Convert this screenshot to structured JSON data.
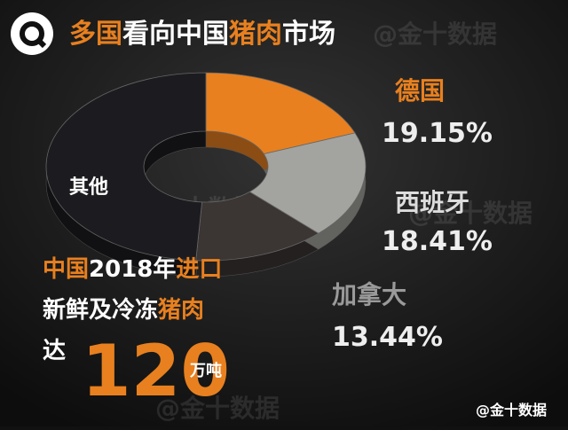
{
  "chart_data": {
    "type": "pie",
    "title": [
      "多国",
      "看向中国",
      "猪肉",
      "市场"
    ],
    "categories": [
      "德国",
      "西班牙",
      "加拿大",
      "其他"
    ],
    "values": [
      19.15,
      18.41,
      13.44,
      49
    ],
    "value_labels": [
      "19.15%",
      "18.41%",
      "13.44%",
      null
    ],
    "colors": [
      "#e8801f",
      "#a3a49f",
      "#3b3533",
      "#1c1c20"
    ],
    "donut": true
  },
  "annotation": {
    "line1": [
      "中国",
      "2018年",
      "进口"
    ],
    "line2": [
      "新鲜及冷冻",
      "猪肉"
    ],
    "line3": [
      "达",
      "120",
      "万吨"
    ]
  },
  "watermark": "@金十数据",
  "credit": "@金十数据"
}
